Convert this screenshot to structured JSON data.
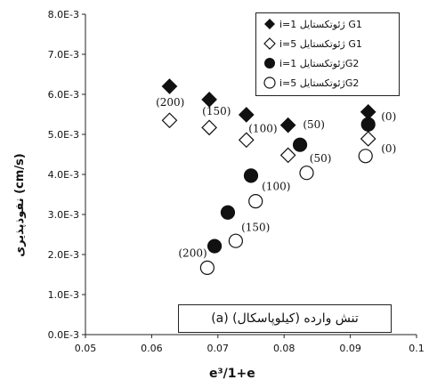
{
  "chart_data": {
    "type": "scatter",
    "xlabel": "e³/1+e",
    "ylabel": "نفوذپذیری (cm/s)",
    "xlim": [
      0.05,
      0.1
    ],
    "ylim": [
      0,
      0.008
    ],
    "x_ticks": [
      "0.05",
      "0.06",
      "0.07",
      "0.08",
      "0.09",
      "0.1"
    ],
    "y_ticks": [
      "0.0E-3",
      "1.0E-3",
      "2.0E-3",
      "3.0E-3",
      "4.0E-3",
      "5.0E-3",
      "6.0E-3",
      "7.0E-3",
      "8.0E-3"
    ],
    "annotation": "(a)  تنش وارده (کیلوپاسکال)",
    "legend_position": "top-right",
    "series": [
      {
        "name": "i=1 ژئوتکستایل G1",
        "marker": "diamond-filled",
        "points": [
          [
            0.0627,
            0.0062
          ],
          [
            0.0687,
            0.00587
          ],
          [
            0.0743,
            0.00549
          ],
          [
            0.0806,
            0.00523
          ],
          [
            0.0927,
            0.00556
          ]
        ]
      },
      {
        "name": "i=5 ژئوتکستایل G1",
        "marker": "diamond-open",
        "points": [
          [
            0.0627,
            0.00535
          ],
          [
            0.0687,
            0.00517
          ],
          [
            0.0743,
            0.00486
          ],
          [
            0.0806,
            0.00448
          ],
          [
            0.0927,
            0.00489
          ]
        ]
      },
      {
        "name": "i=1 ژئوتکستایلG2",
        "marker": "circle-filled",
        "points": [
          [
            0.0695,
            0.00221
          ],
          [
            0.0715,
            0.00305
          ],
          [
            0.075,
            0.00397
          ],
          [
            0.0824,
            0.00474
          ],
          [
            0.0927,
            0.00525
          ]
        ]
      },
      {
        "name": "i=5 ژئوتکستایلG2",
        "marker": "circle-open",
        "points": [
          [
            0.0684,
            0.00167
          ],
          [
            0.0727,
            0.00234
          ],
          [
            0.0757,
            0.00333
          ],
          [
            0.0834,
            0.00404
          ],
          [
            0.0923,
            0.00446
          ]
        ]
      }
    ],
    "point_labels": [
      {
        "text": "(200)",
        "x": 0.0628,
        "y": 0.0058
      },
      {
        "text": "(150)",
        "x": 0.0698,
        "y": 0.00558
      },
      {
        "text": "(100)",
        "x": 0.0768,
        "y": 0.00515
      },
      {
        "text": "(50)",
        "x": 0.0845,
        "y": 0.00524
      },
      {
        "text": "(0)",
        "x": 0.0958,
        "y": 0.00544
      },
      {
        "text": "(0)",
        "x": 0.0958,
        "y": 0.00465
      },
      {
        "text": "(50)",
        "x": 0.0855,
        "y": 0.0044
      },
      {
        "text": "(100)",
        "x": 0.0788,
        "y": 0.0037
      },
      {
        "text": "(150)",
        "x": 0.0757,
        "y": 0.00268
      },
      {
        "text": "(200)",
        "x": 0.0662,
        "y": 0.00203
      }
    ]
  }
}
